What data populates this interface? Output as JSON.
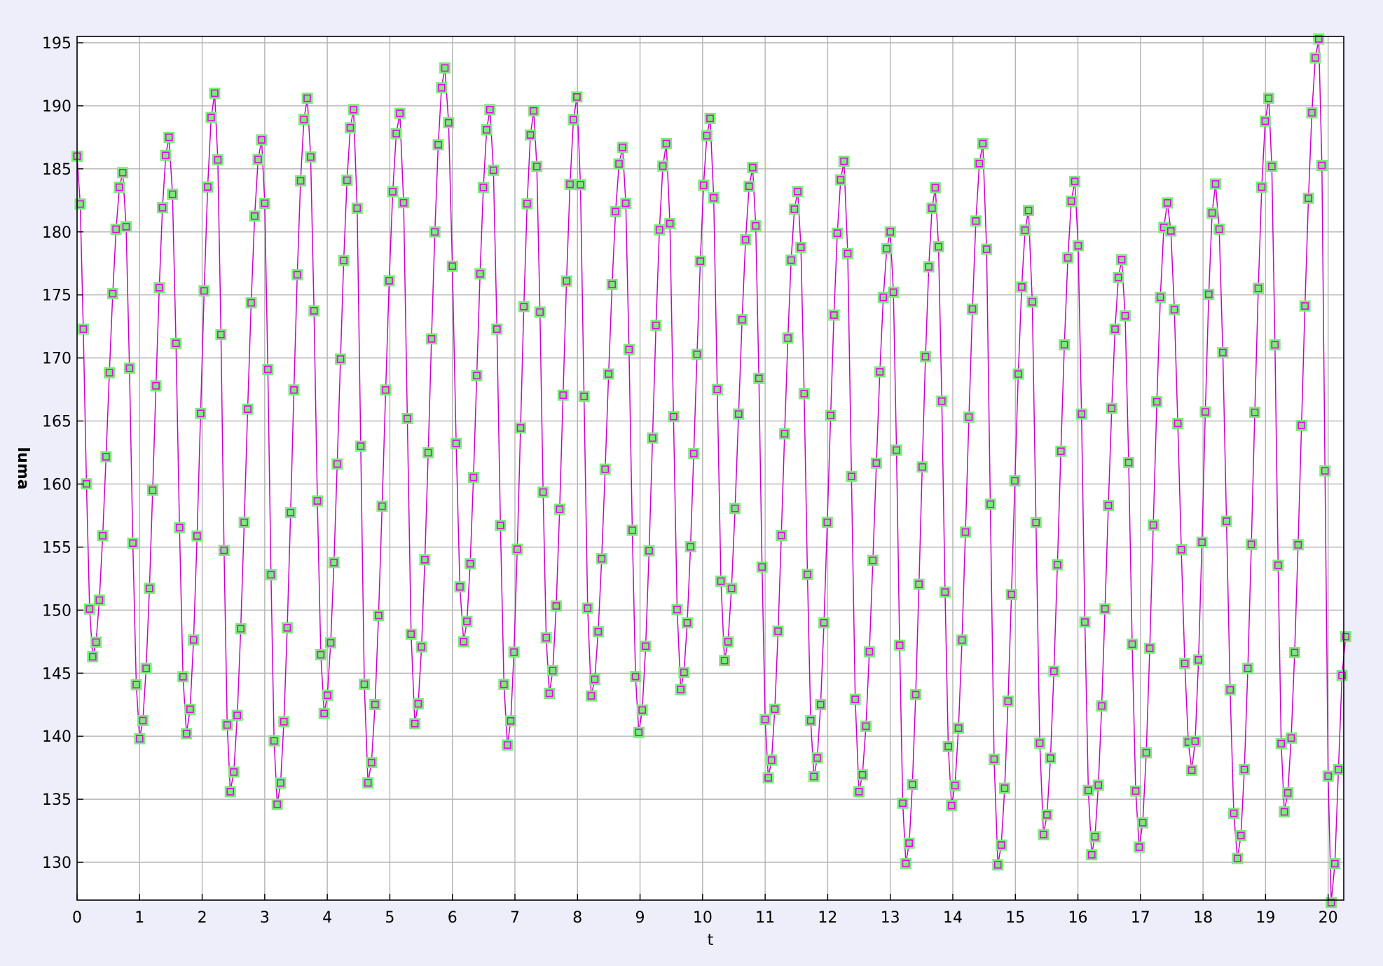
{
  "chart_data": {
    "type": "line",
    "title": "",
    "xlabel": "t",
    "ylabel": "luma",
    "xlim": [
      0,
      20.25
    ],
    "ylim": [
      127,
      195.5
    ],
    "x_ticks": [
      0,
      1,
      2,
      3,
      4,
      5,
      6,
      7,
      8,
      9,
      10,
      11,
      12,
      13,
      14,
      15,
      16,
      17,
      18,
      19,
      20
    ],
    "x_tick_labels": [
      "0",
      "1",
      "2",
      "3",
      "4",
      "5",
      "6",
      "7",
      "8",
      "9",
      "10",
      "11",
      "12",
      "13",
      "14",
      "15",
      "16",
      "17",
      "18",
      "19",
      "20"
    ],
    "y_ticks": [
      130,
      135,
      140,
      145,
      150,
      155,
      160,
      165,
      170,
      175,
      180,
      185,
      190,
      195
    ],
    "y_tick_labels": [
      "130",
      "135",
      "140",
      "145",
      "150",
      "155",
      "160",
      "165",
      "170",
      "175",
      "180",
      "185",
      "190",
      "195"
    ],
    "grid": true,
    "marker": "square",
    "colors": {
      "background": "#eeeefa",
      "plot_background": "#ffffff",
      "grid": "#b4b4b4",
      "axis": "#000000",
      "line": "#cc00cc",
      "marker_fill": "#77ee77",
      "marker_edge": "#ee00ee"
    },
    "series": [
      {
        "peaks": [
          {
            "t": 0.0,
            "v": 186.0
          },
          {
            "t": 0.73,
            "v": 184.7
          },
          {
            "t": 1.47,
            "v": 187.5
          },
          {
            "t": 2.2,
            "v": 191.0
          },
          {
            "t": 2.95,
            "v": 187.3
          },
          {
            "t": 3.68,
            "v": 190.6
          },
          {
            "t": 4.42,
            "v": 189.7
          },
          {
            "t": 5.16,
            "v": 189.4
          },
          {
            "t": 5.88,
            "v": 193.0
          },
          {
            "t": 6.6,
            "v": 189.7
          },
          {
            "t": 7.3,
            "v": 189.6
          },
          {
            "t": 7.99,
            "v": 190.7
          },
          {
            "t": 8.72,
            "v": 186.7
          },
          {
            "t": 9.42,
            "v": 187.0
          },
          {
            "t": 10.12,
            "v": 189.0
          },
          {
            "t": 10.8,
            "v": 185.1
          },
          {
            "t": 11.52,
            "v": 183.2
          },
          {
            "t": 12.26,
            "v": 185.6
          },
          {
            "t": 13.0,
            "v": 180.0
          },
          {
            "t": 13.72,
            "v": 183.5
          },
          {
            "t": 14.48,
            "v": 187.0
          },
          {
            "t": 15.21,
            "v": 181.7
          },
          {
            "t": 15.95,
            "v": 184.0
          },
          {
            "t": 16.7,
            "v": 177.8
          },
          {
            "t": 17.43,
            "v": 182.3
          },
          {
            "t": 18.2,
            "v": 183.8
          },
          {
            "t": 19.05,
            "v": 190.6
          },
          {
            "t": 19.85,
            "v": 195.3
          }
        ],
        "troughs": [
          {
            "t": 0.25,
            "v": 146.3
          },
          {
            "t": 1.0,
            "v": 139.8
          },
          {
            "t": 1.75,
            "v": 140.2
          },
          {
            "t": 2.45,
            "v": 135.6
          },
          {
            "t": 3.2,
            "v": 134.6
          },
          {
            "t": 3.95,
            "v": 141.8
          },
          {
            "t": 4.65,
            "v": 136.3
          },
          {
            "t": 5.4,
            "v": 141.0
          },
          {
            "t": 6.18,
            "v": 147.5
          },
          {
            "t": 6.88,
            "v": 139.3
          },
          {
            "t": 7.55,
            "v": 143.4
          },
          {
            "t": 8.22,
            "v": 143.2
          },
          {
            "t": 8.98,
            "v": 140.3
          },
          {
            "t": 9.65,
            "v": 143.7
          },
          {
            "t": 10.35,
            "v": 146.0
          },
          {
            "t": 11.05,
            "v": 136.7
          },
          {
            "t": 11.78,
            "v": 136.8
          },
          {
            "t": 12.5,
            "v": 135.6
          },
          {
            "t": 13.25,
            "v": 129.9
          },
          {
            "t": 13.98,
            "v": 134.5
          },
          {
            "t": 14.72,
            "v": 129.8
          },
          {
            "t": 15.45,
            "v": 132.2
          },
          {
            "t": 16.22,
            "v": 130.6
          },
          {
            "t": 16.98,
            "v": 131.2
          },
          {
            "t": 17.82,
            "v": 137.3
          },
          {
            "t": 18.55,
            "v": 130.3
          },
          {
            "t": 19.3,
            "v": 134.0
          },
          {
            "t": 20.05,
            "v": 126.8
          }
        ],
        "last_point": {
          "t": 20.28,
          "v": 147.9
        }
      }
    ]
  }
}
